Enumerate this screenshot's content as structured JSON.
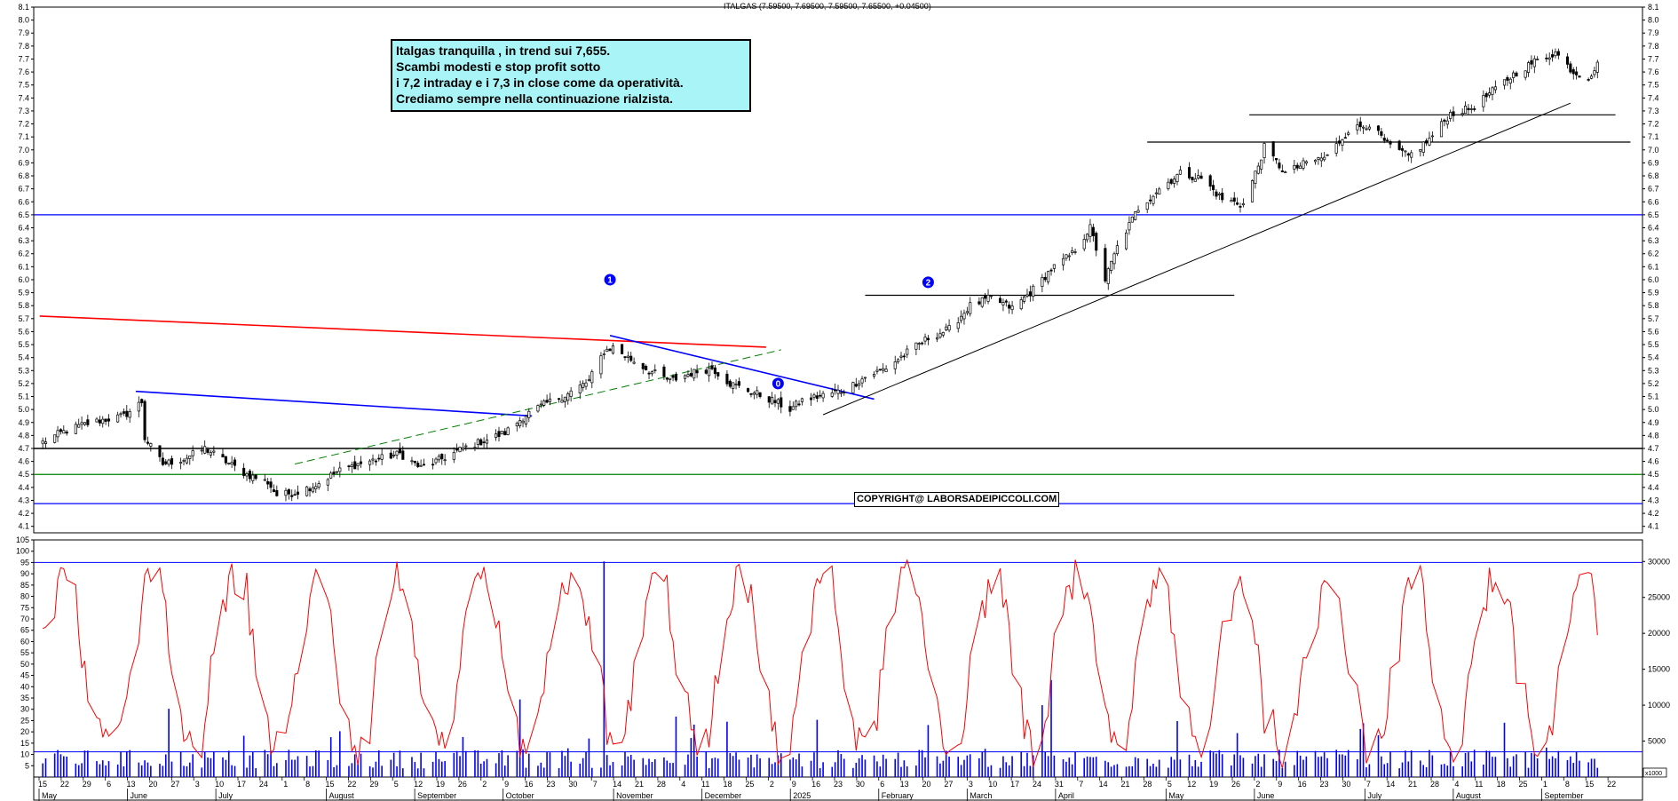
{
  "header": {
    "title": "ITALGAS (7.59500, 7.69500, 7.59500, 7.65500, +0.04500)"
  },
  "note": {
    "lines": [
      "Italgas tranquilla , in trend  sui 7,655.",
      "Scambi modesti e stop profit sotto",
      "i 7,2 intraday e i 7,3 in close come da operatività.",
      "Crediamo sempre nella continuazione rialzista."
    ]
  },
  "copyright": "COPYRIGHT@ LABORSADEIPICCOLI.COM",
  "markers": [
    {
      "label": "1",
      "x": "Oct 21",
      "y": 6.0
    },
    {
      "label": "0",
      "x": "Dec 30",
      "y": 5.2
    },
    {
      "label": "2",
      "x": "Feb 10",
      "y": 5.98
    }
  ],
  "chart_data": [
    {
      "type": "candlestick",
      "series_name": "ITALGAS",
      "ylim": [
        4.05,
        8.1
      ],
      "y_ticks": [
        4.1,
        4.2,
        4.3,
        4.4,
        4.5,
        4.6,
        4.7,
        4.8,
        4.9,
        5.0,
        5.1,
        5.2,
        5.3,
        5.4,
        5.5,
        5.6,
        5.7,
        5.8,
        5.9,
        6.0,
        6.1,
        6.2,
        6.3,
        6.4,
        6.5,
        6.6,
        6.7,
        6.8,
        6.9,
        7.0,
        7.1,
        7.2,
        7.3,
        7.4,
        7.5,
        7.6,
        7.7,
        7.8,
        7.9,
        8.0,
        8.1
      ],
      "y_tick_labels": [
        "4.1",
        "4.2",
        "4.3",
        "4.4",
        "4.5",
        "4.6",
        "4.7",
        "4.8",
        "4.9",
        "5.0",
        "5.1",
        "5.2",
        "5.3",
        "5.4",
        "5.5",
        "5.6",
        "5.7",
        "5.8",
        "5.9",
        "6.0",
        "6.1",
        "6.2",
        "6.3",
        "6.4",
        "6.5",
        "6.6",
        "6.7",
        "6.8",
        "6.9",
        "7.0",
        "7.1",
        "7.2",
        "7.3",
        "7.4",
        "7.5",
        "7.6",
        "7.7",
        "7.8",
        "7.9",
        "8.0",
        "8.1"
      ],
      "last": {
        "open": 7.595,
        "high": 7.695,
        "low": 7.595,
        "close": 7.655,
        "change": 0.045
      },
      "close_path": [
        {
          "date": "2024-05-09",
          "close": 4.75
        },
        {
          "date": "2024-05-15",
          "close": 4.82
        },
        {
          "date": "2024-05-22",
          "close": 4.88
        },
        {
          "date": "2024-05-29",
          "close": 4.92
        },
        {
          "date": "2024-06-05",
          "close": 4.95
        },
        {
          "date": "2024-06-11",
          "close": 5.06
        },
        {
          "date": "2024-06-12",
          "close": 4.78
        },
        {
          "date": "2024-06-18",
          "close": 4.58
        },
        {
          "date": "2024-06-25",
          "close": 4.62
        },
        {
          "date": "2024-07-02",
          "close": 4.7
        },
        {
          "date": "2024-07-09",
          "close": 4.6
        },
        {
          "date": "2024-07-16",
          "close": 4.5
        },
        {
          "date": "2024-07-23",
          "close": 4.44
        },
        {
          "date": "2024-07-26",
          "close": 4.34
        },
        {
          "date": "2024-08-01",
          "close": 4.36
        },
        {
          "date": "2024-08-08",
          "close": 4.42
        },
        {
          "date": "2024-08-15",
          "close": 4.52
        },
        {
          "date": "2024-08-22",
          "close": 4.58
        },
        {
          "date": "2024-08-29",
          "close": 4.62
        },
        {
          "date": "2024-09-05",
          "close": 4.66
        },
        {
          "date": "2024-09-12",
          "close": 4.55
        },
        {
          "date": "2024-09-19",
          "close": 4.62
        },
        {
          "date": "2024-09-26",
          "close": 4.7
        },
        {
          "date": "2024-10-03",
          "close": 4.76
        },
        {
          "date": "2024-10-10",
          "close": 4.82
        },
        {
          "date": "2024-10-17",
          "close": 4.96
        },
        {
          "date": "2024-10-24",
          "close": 5.05
        },
        {
          "date": "2024-10-31",
          "close": 5.12
        },
        {
          "date": "2024-11-07",
          "close": 5.22
        },
        {
          "date": "2024-11-12",
          "close": 5.45
        },
        {
          "date": "2024-11-15",
          "close": 5.48
        },
        {
          "date": "2024-11-20",
          "close": 5.4
        },
        {
          "date": "2024-11-27",
          "close": 5.3
        },
        {
          "date": "2024-12-04",
          "close": 5.22
        },
        {
          "date": "2024-12-11",
          "close": 5.28
        },
        {
          "date": "2024-12-18",
          "close": 5.32
        },
        {
          "date": "2024-12-24",
          "close": 5.2
        },
        {
          "date": "2025-01-02",
          "close": 5.12
        },
        {
          "date": "2025-01-08",
          "close": 5.06
        },
        {
          "date": "2025-01-13",
          "close": 5.0
        },
        {
          "date": "2025-01-17",
          "close": 5.07
        },
        {
          "date": "2025-01-24",
          "close": 5.11
        },
        {
          "date": "2025-01-31",
          "close": 5.15
        },
        {
          "date": "2025-02-07",
          "close": 5.25
        },
        {
          "date": "2025-02-14",
          "close": 5.32
        },
        {
          "date": "2025-02-21",
          "close": 5.44
        },
        {
          "date": "2025-02-28",
          "close": 5.55
        },
        {
          "date": "2025-03-07",
          "close": 5.62
        },
        {
          "date": "2025-03-14",
          "close": 5.8
        },
        {
          "date": "2025-03-21",
          "close": 5.86
        },
        {
          "date": "2025-03-28",
          "close": 5.78
        },
        {
          "date": "2025-04-03",
          "close": 5.9
        },
        {
          "date": "2025-04-10",
          "close": 6.08
        },
        {
          "date": "2025-04-17",
          "close": 6.2
        },
        {
          "date": "2025-04-23",
          "close": 6.4
        },
        {
          "date": "2025-04-28",
          "close": 6.0
        },
        {
          "date": "2025-05-02",
          "close": 6.25
        },
        {
          "date": "2025-05-09",
          "close": 6.55
        },
        {
          "date": "2025-05-16",
          "close": 6.7
        },
        {
          "date": "2025-05-23",
          "close": 6.82
        },
        {
          "date": "2025-05-30",
          "close": 6.78
        },
        {
          "date": "2025-06-06",
          "close": 6.62
        },
        {
          "date": "2025-06-13",
          "close": 6.58
        },
        {
          "date": "2025-06-18",
          "close": 6.88
        },
        {
          "date": "2025-06-20",
          "close": 7.02
        },
        {
          "date": "2025-06-27",
          "close": 6.82
        },
        {
          "date": "2025-07-04",
          "close": 6.9
        },
        {
          "date": "2025-07-11",
          "close": 6.95
        },
        {
          "date": "2025-07-18",
          "close": 7.15
        },
        {
          "date": "2025-07-25",
          "close": 7.2
        },
        {
          "date": "2025-07-31",
          "close": 7.04
        },
        {
          "date": "2025-08-07",
          "close": 6.95
        },
        {
          "date": "2025-08-14",
          "close": 7.08
        },
        {
          "date": "2025-08-21",
          "close": 7.28
        },
        {
          "date": "2025-08-28",
          "close": 7.32
        },
        {
          "date": "2025-09-04",
          "close": 7.45
        },
        {
          "date": "2025-09-11",
          "close": 7.58
        },
        {
          "date": "2025-09-18",
          "close": 7.68
        },
        {
          "date": "2025-09-25",
          "close": 7.75
        },
        {
          "date": "2025-10-01",
          "close": 7.6
        },
        {
          "date": "2025-10-06",
          "close": 7.56
        },
        {
          "date": "2025-10-09",
          "close": 7.655
        }
      ],
      "horizontal_lines": [
        {
          "y": 6.5,
          "color": "#0000ff"
        },
        {
          "y": 4.7,
          "color": "#000000"
        },
        {
          "y": 4.5,
          "color": "#008000"
        },
        {
          "y": 4.275,
          "color": "#0000ff"
        },
        {
          "y": 5.88,
          "color": "#000000",
          "from": "2025-02-07",
          "to": "2025-06-10"
        },
        {
          "y": 7.06,
          "color": "#000000",
          "from": "2025-05-12",
          "to": "2025-10-20"
        },
        {
          "y": 7.27,
          "color": "#000000",
          "from": "2025-06-15",
          "to": "2025-10-15"
        }
      ],
      "trend_lines": [
        {
          "color": "#ff0000",
          "from": [
            "2024-05-08",
            5.72
          ],
          "to": [
            "2025-01-05",
            5.48
          ]
        },
        {
          "color": "#0000ff",
          "from": [
            "2024-06-09",
            5.14
          ],
          "to": [
            "2024-10-19",
            4.95
          ]
        },
        {
          "color": "#0000ff",
          "from": [
            "2024-11-14",
            5.57
          ],
          "to": [
            "2025-02-10",
            5.08
          ]
        },
        {
          "color": "#008000",
          "dashed": true,
          "from": [
            "2024-08-01",
            4.58
          ],
          "to": [
            "2025-01-10",
            5.46
          ]
        },
        {
          "color": "#000000",
          "from": [
            "2025-01-24",
            4.96
          ],
          "to": [
            "2025-09-30",
            7.36
          ]
        }
      ],
      "x_labels_days": [
        "15",
        "22",
        "29",
        "6",
        "13",
        "20",
        "27",
        "3",
        "10",
        "17",
        "24",
        "1",
        "8",
        "15",
        "22",
        "29",
        "5",
        "12",
        "19",
        "26",
        "2",
        "9",
        "16",
        "23",
        "30",
        "7",
        "14",
        "21",
        "28",
        "4",
        "11",
        "18",
        "25",
        "2",
        "9",
        "16",
        "23",
        "30",
        "6",
        "13",
        "20",
        "27",
        "3",
        "10",
        "17",
        "24",
        "31",
        "7",
        "14",
        "21",
        "28",
        "5",
        "12",
        "19",
        "26",
        "2",
        "9",
        "16",
        "23",
        "30",
        "7",
        "14",
        "21",
        "28",
        "4",
        "11",
        "18",
        "25",
        "1",
        "8",
        "15",
        "22"
      ],
      "x_labels_months": [
        "May",
        "June",
        "July",
        "August",
        "September",
        "October",
        "November",
        "December",
        "2025",
        "February",
        "March",
        "April",
        "May",
        "June",
        "July",
        "August",
        "September"
      ]
    },
    {
      "type": "line",
      "series_name": "oscillator",
      "ylim": [
        0,
        105
      ],
      "y_ticks": [
        5,
        10,
        15,
        20,
        25,
        30,
        35,
        40,
        45,
        50,
        55,
        60,
        65,
        70,
        75,
        80,
        85,
        90,
        95,
        100,
        105
      ],
      "y_tick_labels": [
        "5",
        "10",
        "15",
        "20",
        "25",
        "30",
        "35",
        "40",
        "45",
        "50",
        "55",
        "60",
        "65",
        "70",
        "75",
        "80",
        "85",
        "90",
        "95",
        "100",
        "105"
      ],
      "reference_line": {
        "y": 95,
        "color": "#0000ff"
      },
      "color": "#ff0000"
    },
    {
      "type": "bar",
      "series_name": "volume",
      "ylim": [
        0,
        33000
      ],
      "y_ticks": [
        5000,
        10000,
        15000,
        20000,
        25000,
        30000
      ],
      "y_tick_labels": [
        "5000",
        "10000",
        "15000",
        "20000",
        "25000",
        "30000"
      ],
      "scale_label": "x1000",
      "reference_line": {
        "y": 3500,
        "color": "#0000ff"
      },
      "color": "#0000ff",
      "notable_spikes": [
        {
          "date": "2024-11-12",
          "value": 30000
        },
        {
          "date": "2025-04-07",
          "value": 10000
        },
        {
          "date": "2025-04-10",
          "value": 13500
        },
        {
          "date": "2024-06-20",
          "value": 9500
        },
        {
          "date": "2024-10-15",
          "value": 10800
        }
      ]
    }
  ]
}
